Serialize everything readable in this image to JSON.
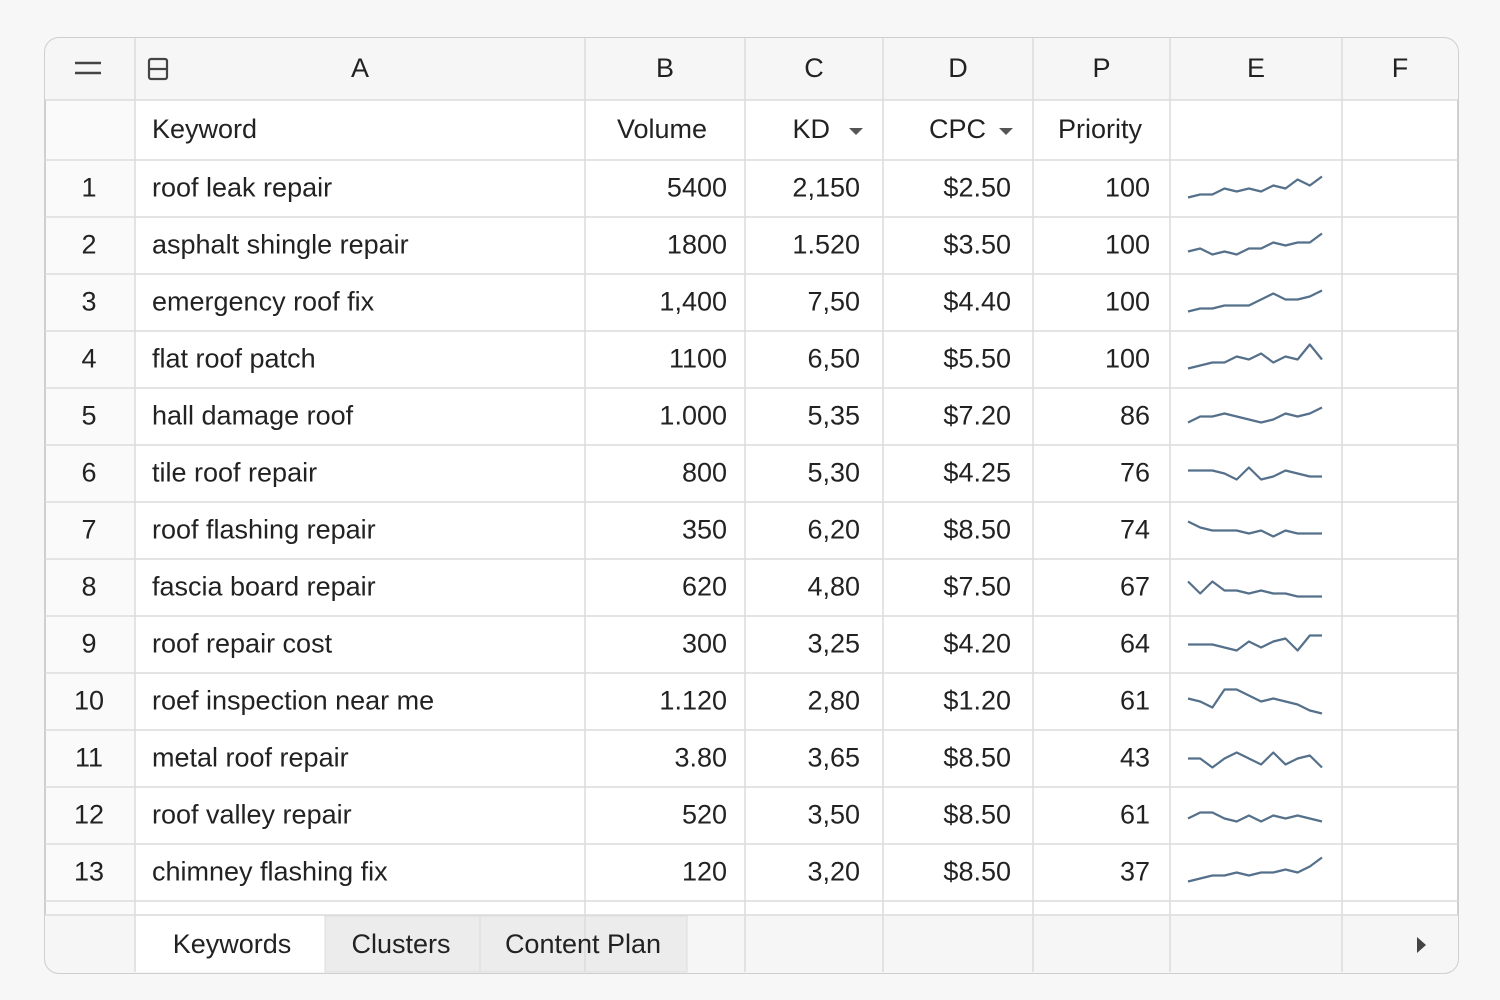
{
  "columns": [
    "A",
    "B",
    "C",
    "D",
    "P",
    "E",
    "F"
  ],
  "headers": [
    "Keyword",
    "Volume",
    "KD",
    "CPC",
    "Priority"
  ],
  "rows": [
    {
      "n": "1",
      "keyword": "roof leak repair",
      "volume": "5400",
      "kd": "2,150",
      "cpc": "$2.50",
      "priority": "100",
      "trend": [
        2,
        3,
        3,
        5,
        4,
        5,
        4,
        6,
        5,
        8,
        6,
        9
      ]
    },
    {
      "n": "2",
      "keyword": "asphalt shingle repair",
      "volume": "1800",
      "kd": "1.520",
      "cpc": "$3.50",
      "priority": "100",
      "trend": [
        3,
        4,
        2,
        3,
        2,
        4,
        4,
        6,
        5,
        6,
        6,
        9
      ]
    },
    {
      "n": "3",
      "keyword": "emergency roof fix",
      "volume": "1,400",
      "kd": "7,50",
      "cpc": "$4.40",
      "priority": "100",
      "trend": [
        2,
        3,
        3,
        4,
        4,
        4,
        6,
        8,
        6,
        6,
        7,
        9
      ]
    },
    {
      "n": "4",
      "keyword": "flat roof patch",
      "volume": "1100",
      "kd": "6,50",
      "cpc": "$5.50",
      "priority": "100",
      "trend": [
        2,
        3,
        4,
        4,
        6,
        5,
        7,
        4,
        6,
        5,
        10,
        5
      ]
    },
    {
      "n": "5",
      "keyword": "hall damage roof",
      "volume": "1.000",
      "kd": "5,35",
      "cpc": "$7.20",
      "priority": "86",
      "trend": [
        3,
        5,
        5,
        6,
        5,
        4,
        3,
        4,
        6,
        5,
        6,
        8
      ]
    },
    {
      "n": "6",
      "keyword": "tile roof repair",
      "volume": "800",
      "kd": "5,30",
      "cpc": "$4.25",
      "priority": "76",
      "trend": [
        6,
        6,
        6,
        5,
        3,
        7,
        3,
        4,
        6,
        5,
        4,
        4
      ]
    },
    {
      "n": "7",
      "keyword": "roof flashing repair",
      "volume": "350",
      "kd": "6,20",
      "cpc": "$8.50",
      "priority": "74",
      "trend": [
        8,
        6,
        5,
        5,
        5,
        4,
        5,
        3,
        5,
        4,
        4,
        4
      ]
    },
    {
      "n": "8",
      "keyword": "fascia board repair",
      "volume": "620",
      "kd": "4,80",
      "cpc": "$7.50",
      "priority": "67",
      "trend": [
        7,
        3,
        7,
        4,
        4,
        3,
        4,
        3,
        3,
        2,
        2,
        2
      ]
    },
    {
      "n": "9",
      "keyword": "roof repair cost",
      "volume": "300",
      "kd": "3,25",
      "cpc": "$4.20",
      "priority": "64",
      "trend": [
        5,
        5,
        5,
        4,
        3,
        6,
        4,
        6,
        7,
        3,
        8,
        8
      ]
    },
    {
      "n": "10",
      "keyword": "roef inspection near me",
      "volume": "1.120",
      "kd": "2,80",
      "cpc": "$1.20",
      "priority": "61",
      "trend": [
        6,
        5,
        3,
        9,
        9,
        7,
        5,
        6,
        5,
        4,
        2,
        1
      ]
    },
    {
      "n": "11",
      "keyword": "metal roof repair",
      "volume": "3.80",
      "kd": "3,65",
      "cpc": "$8.50",
      "priority": "43",
      "trend": [
        5,
        5,
        2,
        5,
        7,
        5,
        3,
        7,
        3,
        5,
        6,
        2
      ]
    },
    {
      "n": "12",
      "keyword": "roof valley repair",
      "volume": "520",
      "kd": "3,50",
      "cpc": "$8.50",
      "priority": "61",
      "trend": [
        4,
        6,
        6,
        4,
        3,
        5,
        3,
        5,
        4,
        5,
        4,
        3
      ]
    },
    {
      "n": "13",
      "keyword": "chimney flashing fix",
      "volume": "120",
      "kd": "3,20",
      "cpc": "$8.50",
      "priority": "37",
      "trend": [
        2,
        3,
        4,
        4,
        5,
        4,
        5,
        5,
        6,
        5,
        7,
        10
      ]
    }
  ],
  "tabs": [
    "Keywords",
    "Clusters",
    "Content Plan"
  ]
}
